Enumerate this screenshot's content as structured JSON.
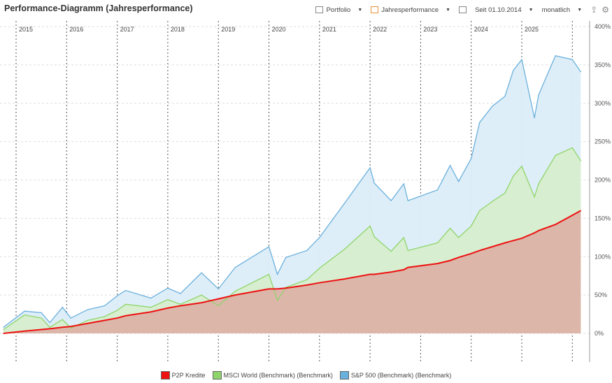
{
  "header": {
    "title": "Performance-Diagramm (Jahresperformance)",
    "portfolio_label": "Portfolio",
    "mode_label": "Jahresperformance",
    "since_label": "Seit 01.10.2014",
    "interval_label": "monatlich",
    "icons": [
      "export-icon",
      "gear-icon"
    ]
  },
  "colors": {
    "p2p": "#ee1111",
    "msci": "#8fd46a",
    "sp500": "#6ab0dc",
    "p2p_fill": "#dcb2a6",
    "msci_fill": "#d6eecd",
    "sp_fill": "#dcedf8"
  },
  "chart_data": {
    "type": "area",
    "title": "Performance-Diagramm (Jahresperformance)",
    "x_ticks": [
      "2015",
      "2016",
      "2017",
      "2018",
      "2019",
      "2020",
      "2021",
      "2022",
      "2023",
      "2024",
      "2025"
    ],
    "y_ticks": [
      "0%",
      "50%",
      "100%",
      "150%",
      "200%",
      "250%",
      "300%",
      "350%",
      "400%"
    ],
    "ylim": [
      0,
      400
    ],
    "y_unit": "%",
    "grid": true,
    "legend_position": "bottom",
    "x": [
      "2014-10",
      "2015-03",
      "2015-07",
      "2015-09",
      "2015-12",
      "2016-02",
      "2016-06",
      "2016-10",
      "2017-01",
      "2017-03",
      "2017-09",
      "2018-01",
      "2018-04",
      "2018-09",
      "2019-01",
      "2019-05",
      "2020-01",
      "2020-03",
      "2020-05",
      "2020-10",
      "2021-01",
      "2021-07",
      "2022-01",
      "2022-02",
      "2022-06",
      "2022-09",
      "2022-10",
      "2023-05",
      "2023-08",
      "2023-10",
      "2024-01",
      "2024-03",
      "2024-06",
      "2024-09",
      "2024-11",
      "2025-01",
      "2025-04",
      "2025-05",
      "2025-09",
      "2026-01",
      "2026-03"
    ],
    "series": [
      {
        "name": "S&P 500 (Benchmark) (Benchmark)",
        "key": "sp500",
        "values": [
          8,
          29,
          27,
          14,
          34,
          20,
          31,
          36,
          49,
          56,
          46,
          59,
          52,
          79,
          58,
          86,
          113,
          77,
          99,
          108,
          125,
          170,
          216,
          196,
          173,
          195,
          173,
          187,
          219,
          198,
          228,
          275,
          296,
          309,
          343,
          357,
          281,
          311,
          362,
          357,
          341
        ]
      },
      {
        "name": "MSCI World (Benchmark) (Benchmark)",
        "key": "msci",
        "values": [
          5,
          24,
          20,
          8,
          18,
          7,
          17,
          22,
          30,
          38,
          34,
          44,
          38,
          50,
          36,
          55,
          77,
          43,
          60,
          70,
          85,
          110,
          140,
          126,
          107,
          125,
          108,
          118,
          137,
          125,
          140,
          160,
          172,
          183,
          205,
          218,
          178,
          195,
          232,
          242,
          225
        ]
      },
      {
        "name": "P2P Kredite",
        "key": "p2p",
        "values": [
          0,
          3,
          5,
          6,
          8,
          9,
          13,
          17,
          20,
          23,
          28,
          33,
          36,
          40,
          45,
          50,
          58,
          58,
          59,
          63,
          66,
          71,
          77,
          77,
          80,
          83,
          86,
          91,
          95,
          99,
          104,
          108,
          113,
          118,
          121,
          124,
          131,
          134,
          142,
          154,
          160
        ]
      }
    ]
  }
}
